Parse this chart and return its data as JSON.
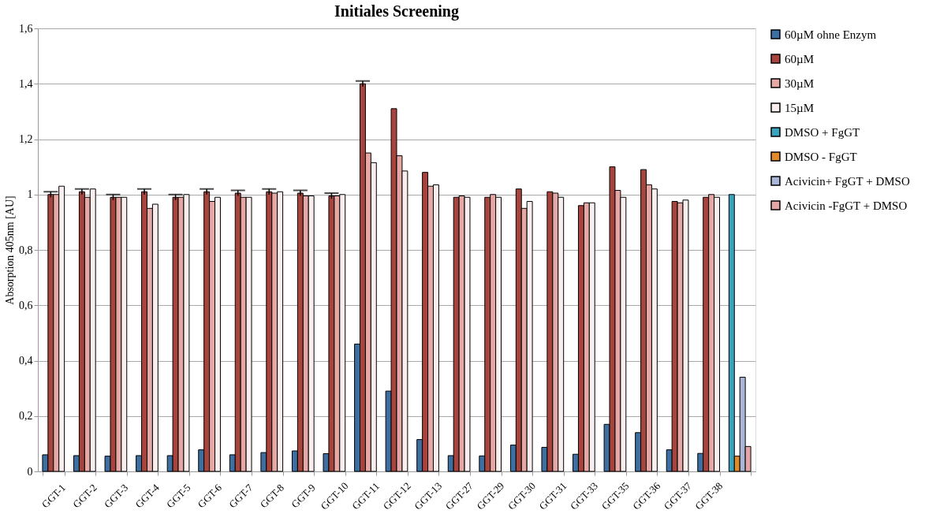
{
  "chart_data": {
    "type": "bar",
    "title": "Initiales Screening",
    "ylabel": "Absorption 405nm [AU]",
    "categories": [
      "GGT-1",
      "GGT-2",
      "GGT-3",
      "GGT-4",
      "GGT-5",
      "GGT-6",
      "GGT-7",
      "GGT-8",
      "GGT-9",
      "GGT-10",
      "GGT-11",
      "GGT-12",
      "GGT-13",
      "GGT-27",
      "GGT-29",
      "GGT-30",
      "GGT-31",
      "GGT-33",
      "GGT-35",
      "GGT-36",
      "GGT-37",
      "GGT-38",
      null
    ],
    "series": [
      {
        "name": "60µM ohne Enzym",
        "color": "#3d6fa0",
        "values": [
          0.06,
          0.057,
          0.055,
          0.057,
          0.057,
          0.078,
          0.06,
          0.068,
          0.074,
          0.064,
          0.46,
          0.29,
          0.115,
          0.057,
          0.056,
          0.095,
          0.087,
          0.062,
          0.17,
          0.14,
          0.078,
          0.065,
          null
        ]
      },
      {
        "name": "60µM",
        "color": "#a8443e",
        "values": [
          1.0,
          1.01,
          0.99,
          1.01,
          0.99,
          1.01,
          1.005,
          1.01,
          1.005,
          0.995,
          1.4,
          1.31,
          1.08,
          0.99,
          0.99,
          1.02,
          1.01,
          0.96,
          1.1,
          1.09,
          0.975,
          0.99,
          null
        ],
        "errors": [
          0.01,
          0.01,
          0.01,
          0.01,
          0.01,
          0.01,
          0.01,
          0.01,
          0.01,
          0.01,
          0.01,
          null,
          null,
          null,
          null,
          null,
          null,
          null,
          null,
          null,
          null,
          null,
          null
        ]
      },
      {
        "name": "30µM",
        "color": "#e5a8a4",
        "values": [
          1.0,
          0.99,
          0.99,
          0.95,
          0.99,
          0.975,
          0.99,
          1.005,
          0.995,
          0.995,
          1.15,
          1.14,
          1.03,
          0.995,
          1.0,
          0.95,
          1.005,
          0.97,
          1.015,
          1.035,
          0.97,
          1.0,
          null
        ]
      },
      {
        "name": "15µM",
        "color": "#f7eeed",
        "values": [
          1.03,
          1.02,
          0.99,
          0.965,
          1.0,
          0.99,
          0.99,
          1.01,
          0.995,
          1.0,
          1.115,
          1.085,
          1.035,
          0.99,
          0.99,
          0.975,
          0.99,
          0.97,
          0.99,
          1.02,
          0.98,
          0.99,
          null
        ]
      },
      {
        "name": "DMSO + FgGT",
        "color": "#3ba3bd",
        "values": [
          null,
          null,
          null,
          null,
          null,
          null,
          null,
          null,
          null,
          null,
          null,
          null,
          null,
          null,
          null,
          null,
          null,
          null,
          null,
          null,
          null,
          null,
          1.0
        ]
      },
      {
        "name": "DMSO - FgGT",
        "color": "#e08a2c",
        "values": [
          null,
          null,
          null,
          null,
          null,
          null,
          null,
          null,
          null,
          null,
          null,
          null,
          null,
          null,
          null,
          null,
          null,
          null,
          null,
          null,
          null,
          null,
          0.055
        ]
      },
      {
        "name": "Acivicin+ FgGT + DMSO",
        "color": "#a9b6d8",
        "values": [
          null,
          null,
          null,
          null,
          null,
          null,
          null,
          null,
          null,
          null,
          null,
          null,
          null,
          null,
          null,
          null,
          null,
          null,
          null,
          null,
          null,
          null,
          0.34
        ]
      },
      {
        "name": "Acivicin -FgGT + DMSO",
        "color": "#e3a6a6",
        "values": [
          null,
          null,
          null,
          null,
          null,
          null,
          null,
          null,
          null,
          null,
          null,
          null,
          null,
          null,
          null,
          null,
          null,
          null,
          null,
          null,
          null,
          null,
          0.09
        ]
      }
    ],
    "ylim": [
      0,
      1.6
    ],
    "yticks": [
      0,
      {
        "value": 0.2,
        "label": "0,2"
      },
      {
        "value": 0.4,
        "label": "0,4"
      },
      {
        "value": 0.6,
        "label": "0,6"
      },
      {
        "value": 0.8,
        "label": "0,8"
      },
      1,
      {
        "value": 1.2,
        "label": "1,2"
      },
      {
        "value": 1.4,
        "label": "1,4"
      },
      {
        "value": 1.6,
        "label": "1,6"
      }
    ],
    "grid": "y",
    "legend": "right"
  }
}
